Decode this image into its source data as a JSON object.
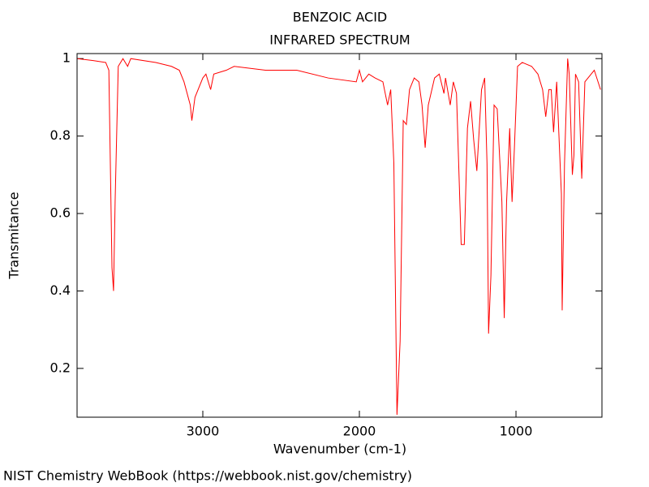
{
  "chart_data": {
    "type": "line",
    "title": "BENZOIC ACID",
    "subtitle": "INFRARED SPECTRUM",
    "x_label": "Wavenumber (cm-1)",
    "y_label": "Transmitance",
    "source": "NIST Chemistry WebBook (https://webbook.nist.gov/chemistry)",
    "color": "#ff0000",
    "x": [
      3800,
      3700,
      3620,
      3600,
      3580,
      3570,
      3560,
      3540,
      3510,
      3480,
      3460,
      3300,
      3200,
      3150,
      3120,
      3080,
      3070,
      3050,
      3000,
      2980,
      2950,
      2930,
      2850,
      2800,
      2600,
      2400,
      2200,
      2020,
      2000,
      1980,
      1940,
      1900,
      1850,
      1820,
      1800,
      1780,
      1760,
      1740,
      1720,
      1700,
      1680,
      1650,
      1620,
      1600,
      1580,
      1560,
      1520,
      1490,
      1460,
      1450,
      1420,
      1400,
      1380,
      1350,
      1330,
      1310,
      1290,
      1270,
      1250,
      1220,
      1200,
      1185,
      1175,
      1160,
      1140,
      1120,
      1090,
      1075,
      1060,
      1040,
      1025,
      1010,
      990,
      960,
      900,
      860,
      830,
      810,
      790,
      775,
      760,
      740,
      710,
      705,
      690,
      670,
      660,
      640,
      630,
      620,
      600,
      580,
      560,
      500,
      460
    ],
    "values": [
      1.0,
      0.995,
      0.99,
      0.97,
      0.46,
      0.4,
      0.63,
      0.98,
      1.0,
      0.98,
      1.0,
      0.99,
      0.98,
      0.97,
      0.94,
      0.88,
      0.84,
      0.9,
      0.95,
      0.96,
      0.92,
      0.96,
      0.97,
      0.98,
      0.97,
      0.97,
      0.95,
      0.94,
      0.97,
      0.94,
      0.96,
      0.95,
      0.94,
      0.88,
      0.92,
      0.73,
      0.08,
      0.27,
      0.84,
      0.83,
      0.92,
      0.95,
      0.94,
      0.88,
      0.77,
      0.88,
      0.95,
      0.96,
      0.91,
      0.95,
      0.88,
      0.94,
      0.91,
      0.52,
      0.52,
      0.82,
      0.89,
      0.79,
      0.71,
      0.92,
      0.95,
      0.73,
      0.29,
      0.44,
      0.88,
      0.87,
      0.63,
      0.33,
      0.63,
      0.82,
      0.63,
      0.77,
      0.98,
      0.99,
      0.98,
      0.96,
      0.92,
      0.85,
      0.92,
      0.92,
      0.81,
      0.94,
      0.65,
      0.35,
      0.73,
      1.0,
      0.96,
      0.7,
      0.75,
      0.96,
      0.94,
      0.69,
      0.94,
      0.97,
      0.92
    ],
    "xlim": [
      3803,
      451
    ],
    "ylim": [
      0.074,
      1.013
    ],
    "xticks": [
      3000,
      2000,
      1000
    ],
    "yticks": [
      0.2,
      0.4,
      0.6,
      0.8,
      1
    ]
  }
}
